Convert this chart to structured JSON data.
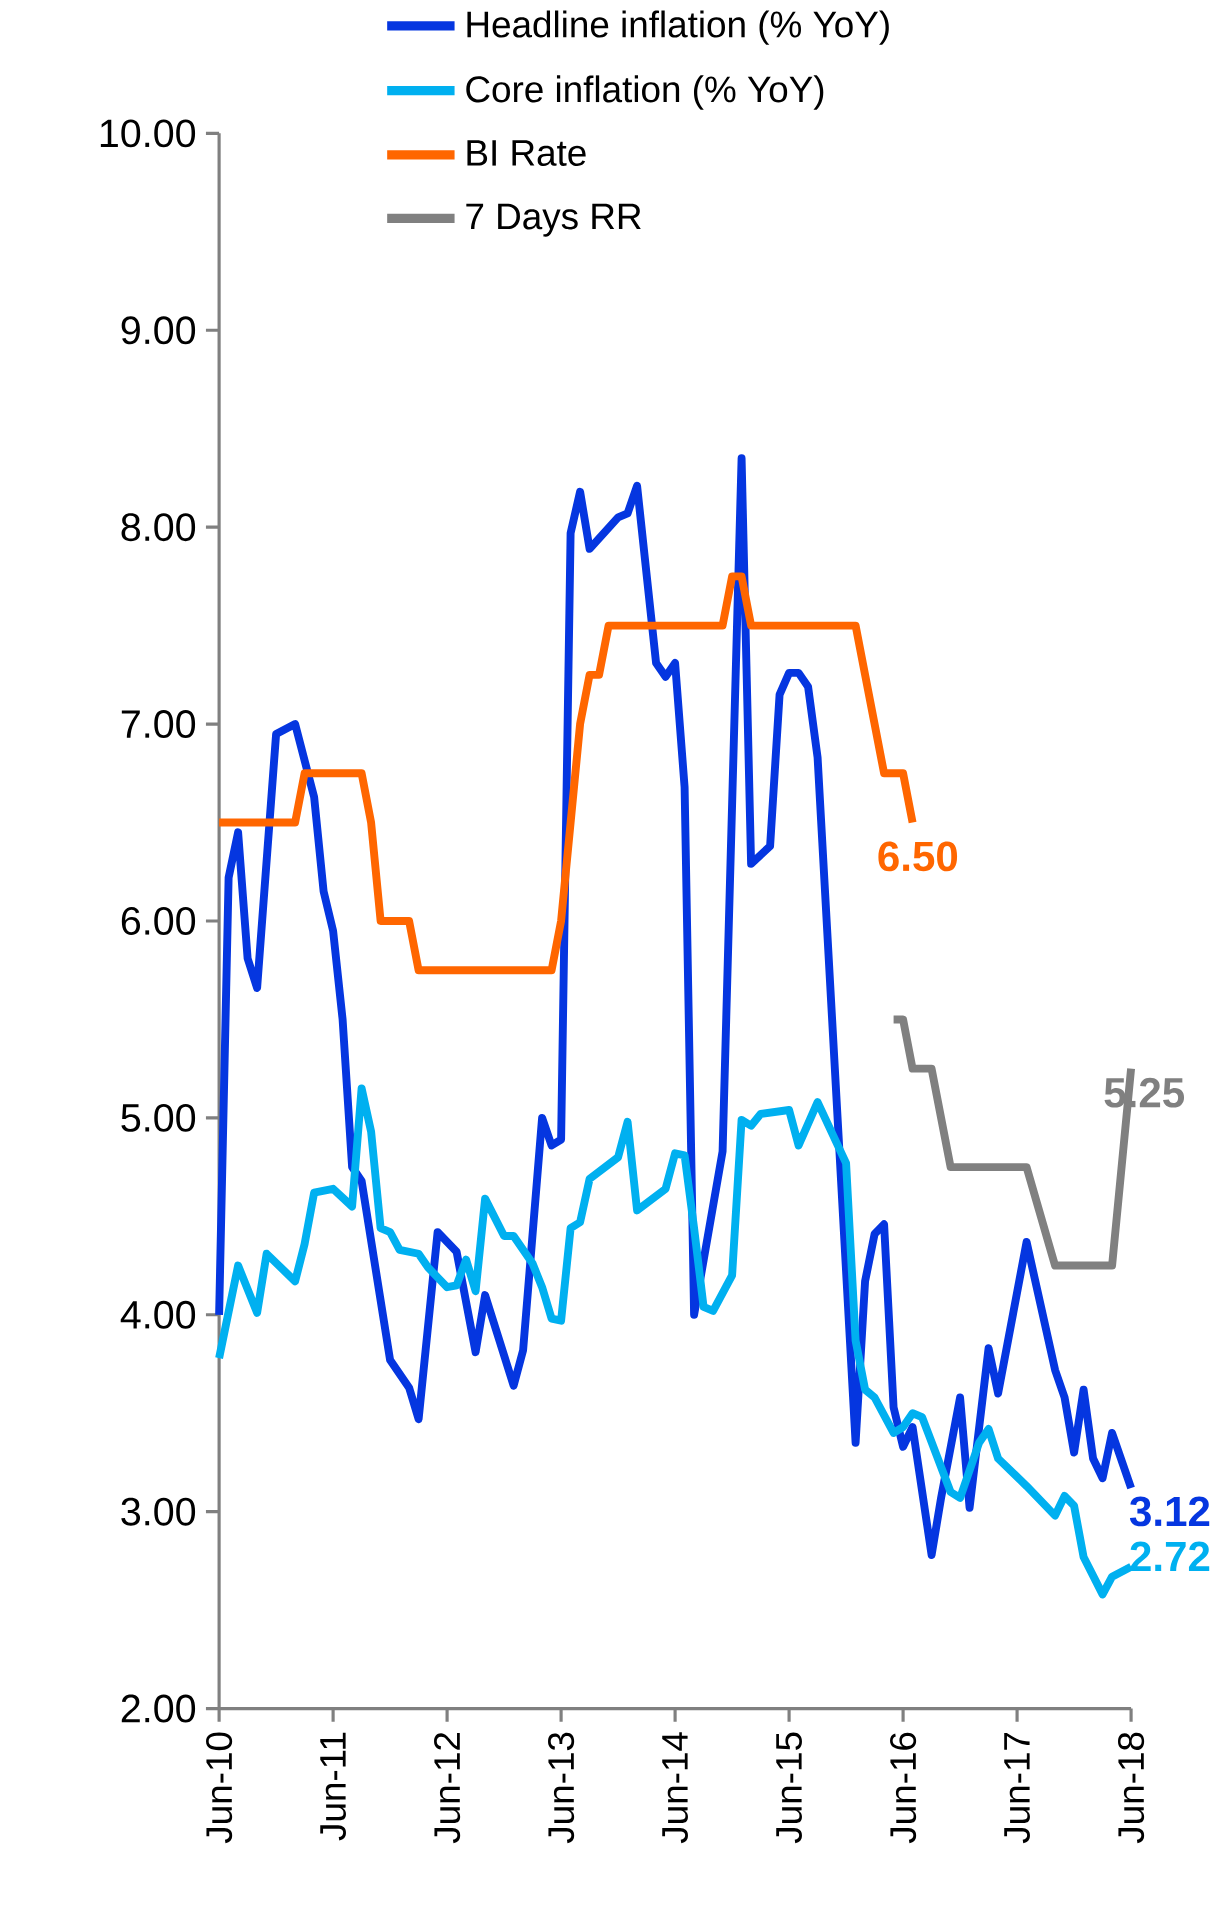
{
  "chart_data": {
    "type": "line",
    "xlim": [
      "2010-06",
      "2018-06"
    ],
    "xticks": [
      {
        "value": "2010-06",
        "label": "Jun-10"
      },
      {
        "value": "2011-06",
        "label": "Jun-11"
      },
      {
        "value": "2012-06",
        "label": "Jun-12"
      },
      {
        "value": "2013-06",
        "label": "Jun-13"
      },
      {
        "value": "2014-06",
        "label": "Jun-14"
      },
      {
        "value": "2015-06",
        "label": "Jun-15"
      },
      {
        "value": "2016-06",
        "label": "Jun-16"
      },
      {
        "value": "2017-06",
        "label": "Jun-17"
      },
      {
        "value": "2018-06",
        "label": "Jun-18"
      }
    ],
    "ylim": [
      2,
      10
    ],
    "yticks": [
      {
        "value": 2,
        "label": "2.00"
      },
      {
        "value": 3,
        "label": "3.00"
      },
      {
        "value": 4,
        "label": "4.00"
      },
      {
        "value": 5,
        "label": "5.00"
      },
      {
        "value": 6,
        "label": "6.00"
      },
      {
        "value": 7,
        "label": "7.00"
      },
      {
        "value": 8,
        "label": "8.00"
      },
      {
        "value": 9,
        "label": "9.00"
      },
      {
        "value": 10,
        "label": "10.00"
      }
    ],
    "legend": "top",
    "marker": "none",
    "line_style": "solid",
    "series": [
      {
        "name": "Headline inflation (% YoY)",
        "color": "#0536e0",
        "x": [
          "2010-06",
          "2010-07",
          "2010-08",
          "2010-09",
          "2010-10",
          "2010-12",
          "2011-02",
          "2011-04",
          "2011-05",
          "2011-06",
          "2011-07",
          "2011-08",
          "2011-09",
          "2011-12",
          "2012-02",
          "2012-03",
          "2012-05",
          "2012-07",
          "2012-09",
          "2012-10",
          "2013-01",
          "2013-02",
          "2013-04",
          "2013-05",
          "2013-06",
          "2013-07",
          "2013-08",
          "2013-09",
          "2013-12",
          "2014-01",
          "2014-02",
          "2014-04",
          "2014-05",
          "2014-06",
          "2014-07",
          "2014-08",
          "2014-11",
          "2015-01",
          "2015-02",
          "2015-04",
          "2015-05",
          "2015-06",
          "2015-07",
          "2015-08",
          "2015-09",
          "2016-01",
          "2016-02",
          "2016-03",
          "2016-04",
          "2016-05",
          "2016-06",
          "2016-07",
          "2016-09",
          "2016-10",
          "2016-12",
          "2017-01",
          "2017-03",
          "2017-04",
          "2017-07",
          "2017-10",
          "2017-11",
          "2017-12",
          "2018-01",
          "2018-02",
          "2018-03",
          "2018-04",
          "2018-06"
        ],
        "values": [
          4.0,
          6.22,
          6.45,
          5.81,
          5.66,
          6.95,
          7.0,
          6.63,
          6.15,
          5.95,
          5.5,
          4.75,
          4.68,
          3.77,
          3.63,
          3.47,
          4.42,
          4.32,
          3.81,
          4.1,
          3.64,
          3.82,
          5.0,
          4.86,
          4.89,
          7.97,
          8.18,
          7.89,
          8.05,
          8.07,
          8.21,
          7.31,
          7.24,
          7.31,
          6.68,
          4.0,
          4.83,
          8.35,
          6.29,
          6.38,
          7.15,
          7.26,
          7.26,
          7.19,
          6.83,
          3.35,
          4.17,
          4.41,
          4.46,
          3.53,
          3.33,
          3.43,
          2.78,
          3.07,
          3.58,
          3.02,
          3.83,
          3.6,
          4.37,
          3.72,
          3.58,
          3.3,
          3.62,
          3.27,
          3.17,
          3.4,
          3.12
        ],
        "value_labels": [
          null,
          null,
          null,
          null,
          null,
          null,
          null,
          null,
          null,
          null,
          null,
          null,
          null,
          null,
          null,
          null,
          null,
          null,
          null,
          null,
          null,
          null,
          null,
          null,
          null,
          null,
          null,
          null,
          null,
          null,
          null,
          null,
          null,
          null,
          null,
          null,
          null,
          null,
          null,
          null,
          null,
          null,
          null,
          null,
          null,
          null,
          null,
          null,
          null,
          null,
          null,
          null,
          null,
          null,
          null,
          null,
          null,
          null,
          null,
          null,
          null,
          null,
          null,
          null,
          null,
          null,
          "3.12"
        ]
      },
      {
        "name": "Core inflation (% YoY)",
        "color": "#00b0f0",
        "x": [
          "2010-06",
          "2010-08",
          "2010-10",
          "2010-11",
          "2011-02",
          "2011-03",
          "2011-04",
          "2011-06",
          "2011-08",
          "2011-09",
          "2011-10",
          "2011-11",
          "2011-12",
          "2012-01",
          "2012-03",
          "2012-04",
          "2012-06",
          "2012-07",
          "2012-08",
          "2012-09",
          "2012-10",
          "2012-12",
          "2013-01",
          "2013-03",
          "2013-04",
          "2013-05",
          "2013-06",
          "2013-07",
          "2013-08",
          "2013-09",
          "2013-12",
          "2014-01",
          "2014-02",
          "2014-05",
          "2014-06",
          "2014-07",
          "2014-08",
          "2014-09",
          "2014-10",
          "2014-12",
          "2015-01",
          "2015-02",
          "2015-03",
          "2015-06",
          "2015-07",
          "2015-09",
          "2015-12",
          "2016-01",
          "2016-02",
          "2016-03",
          "2016-05",
          "2016-06",
          "2016-07",
          "2016-08",
          "2016-11",
          "2016-12",
          "2017-02",
          "2017-03",
          "2017-04",
          "2017-07",
          "2017-10",
          "2017-11",
          "2017-12",
          "2018-01",
          "2018-03",
          "2018-04",
          "2018-06"
        ],
        "values": [
          3.78,
          4.25,
          4.01,
          4.31,
          4.17,
          4.36,
          4.62,
          4.64,
          4.55,
          5.15,
          4.93,
          4.44,
          4.42,
          4.33,
          4.31,
          4.24,
          4.14,
          4.15,
          4.28,
          4.12,
          4.59,
          4.4,
          4.4,
          4.26,
          4.14,
          3.98,
          3.97,
          4.44,
          4.47,
          4.69,
          4.8,
          4.98,
          4.53,
          4.64,
          4.82,
          4.81,
          4.44,
          4.04,
          4.02,
          4.2,
          4.99,
          4.96,
          5.02,
          5.04,
          4.86,
          5.08,
          4.77,
          3.87,
          3.62,
          3.58,
          3.4,
          3.43,
          3.5,
          3.48,
          3.1,
          3.07,
          3.35,
          3.42,
          3.27,
          3.13,
          2.98,
          3.08,
          3.03,
          2.77,
          2.58,
          2.67,
          2.72
        ],
        "value_labels": [
          null,
          null,
          null,
          null,
          null,
          null,
          null,
          null,
          null,
          null,
          null,
          null,
          null,
          null,
          null,
          null,
          null,
          null,
          null,
          null,
          null,
          null,
          null,
          null,
          null,
          null,
          null,
          null,
          null,
          null,
          null,
          null,
          null,
          null,
          null,
          null,
          null,
          null,
          null,
          null,
          null,
          null,
          null,
          null,
          null,
          null,
          null,
          null,
          null,
          null,
          null,
          null,
          null,
          null,
          null,
          null,
          null,
          null,
          null,
          null,
          null,
          null,
          null,
          null,
          null,
          null,
          "2.72"
        ]
      },
      {
        "name": "BI Rate",
        "color": "#ff6600",
        "x": [
          "2010-06",
          "2011-02",
          "2011-03",
          "2011-09",
          "2011-10",
          "2011-11",
          "2012-02",
          "2012-03",
          "2013-05",
          "2013-06",
          "2013-07",
          "2013-08",
          "2013-09",
          "2013-10",
          "2013-11",
          "2014-11",
          "2014-12",
          "2015-01",
          "2015-02",
          "2016-01",
          "2016-02",
          "2016-03",
          "2016-04",
          "2016-06",
          "2016-07"
        ],
        "values": [
          6.5,
          6.5,
          6.75,
          6.75,
          6.5,
          6.0,
          6.0,
          5.75,
          5.75,
          6.0,
          6.5,
          7.0,
          7.25,
          7.25,
          7.5,
          7.5,
          7.75,
          7.75,
          7.5,
          7.5,
          7.25,
          7.0,
          6.75,
          6.75,
          6.5
        ],
        "value_labels": [
          null,
          null,
          null,
          null,
          null,
          null,
          null,
          null,
          null,
          null,
          null,
          null,
          null,
          null,
          null,
          null,
          null,
          null,
          null,
          null,
          null,
          null,
          null,
          null,
          "6.50"
        ]
      },
      {
        "name": "7 Days RR",
        "color": "#808080",
        "x": [
          "2016-05",
          "2016-06",
          "2016-07",
          "2016-09",
          "2016-11",
          "2017-07",
          "2017-10",
          "2018-04",
          "2018-06"
        ],
        "values": [
          5.5,
          5.5,
          5.25,
          5.25,
          4.75,
          4.75,
          4.25,
          4.25,
          5.25
        ],
        "value_labels": [
          null,
          null,
          null,
          null,
          null,
          null,
          null,
          null,
          "5.25"
        ]
      }
    ]
  }
}
